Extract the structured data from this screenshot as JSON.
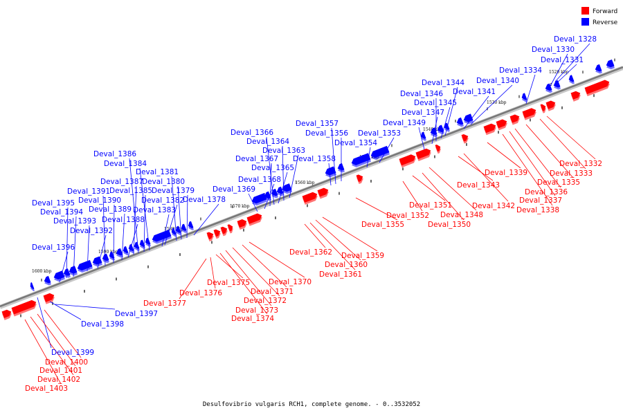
{
  "caption": "Desulfovibrio vulgaris RCH1, complete genome. - 0..3532052",
  "legend": {
    "items": [
      {
        "label": "Forward",
        "color": "#ff0000"
      },
      {
        "label": "Reverse",
        "color": "#0000ff"
      }
    ]
  },
  "colors": {
    "forward": "#ff0000",
    "reverse": "#0000ff",
    "axis": "#888888"
  },
  "ticks": [
    "1520 kbp",
    "1530 kbp",
    "1540 kbp",
    "1550 kbp",
    "1560 kbp",
    "1570 kbp",
    "1580 kbp",
    "1590 kbp",
    "1600 kbp"
  ],
  "reverse_genes": [
    "Deval_1328",
    "Deval_1330",
    "Deval_1331",
    "Deval_1334",
    "Deval_1340",
    "Deval_1341",
    "Deval_1344",
    "Deval_1345",
    "Deval_1346",
    "Deval_1347",
    "Deval_1349",
    "Deval_1353",
    "Deval_1354",
    "Deval_1356",
    "Deval_1357",
    "Deval_1358",
    "Deval_1363",
    "Deval_1364",
    "Deval_1365",
    "Deval_1366",
    "Deval_1367",
    "Deval_1368",
    "Deval_1369",
    "Deval_1378",
    "Deval_1379",
    "Deval_1380",
    "Deval_1381",
    "Deval_1382",
    "Deval_1383",
    "Deval_1384",
    "Deval_1385",
    "Deval_1386",
    "Deval_1387",
    "Deval_1388",
    "Deval_1389",
    "Deval_1390",
    "Deval_1391",
    "Deval_1392",
    "Deval_1393",
    "Deval_1394",
    "Deval_1395",
    "Deval_1396",
    "Deval_1397",
    "Deval_1398",
    "Deval_1399"
  ],
  "forward_genes": [
    "Deval_1332",
    "Deval_1333",
    "Deval_1335",
    "Deval_1336",
    "Deval_1337",
    "Deval_1338",
    "Deval_1339",
    "Deval_1342",
    "Deval_1343",
    "Deval_1348",
    "Deval_1350",
    "Deval_1351",
    "Deval_1352",
    "Deval_1355",
    "Deval_1359",
    "Deval_1360",
    "Deval_1361",
    "Deval_1362",
    "Deval_1370",
    "Deval_1371",
    "Deval_1372",
    "Deval_1373",
    "Deval_1374",
    "Deval_1375",
    "Deval_1376",
    "Deval_1377",
    "Deval_1400",
    "Deval_1401",
    "Deval_1402",
    "Deval_1403"
  ]
}
